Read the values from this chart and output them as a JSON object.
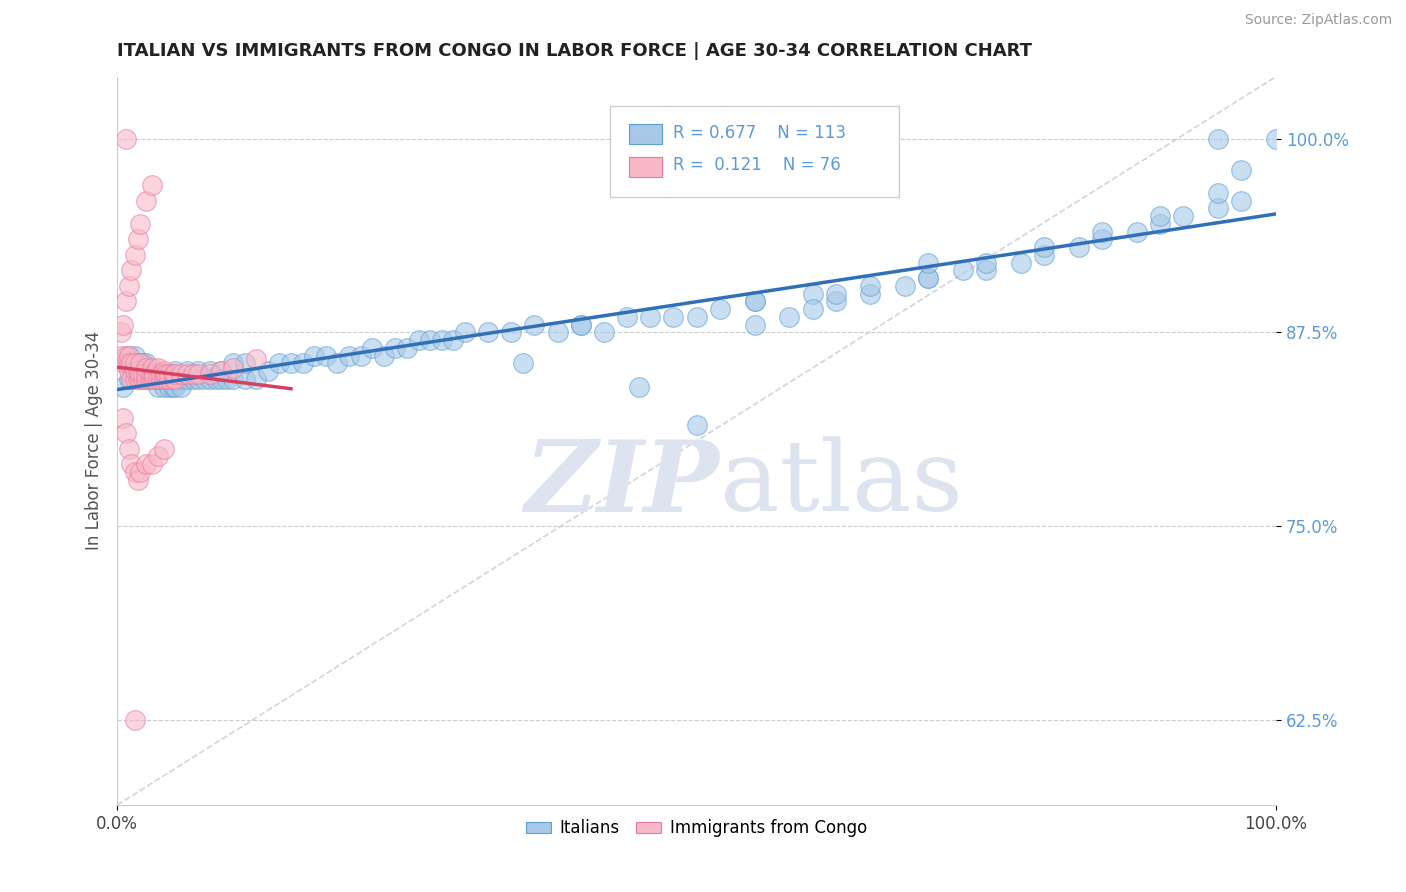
{
  "title": "ITALIAN VS IMMIGRANTS FROM CONGO IN LABOR FORCE | AGE 30-34 CORRELATION CHART",
  "source": "Source: ZipAtlas.com",
  "ylabel": "In Labor Force | Age 30-34",
  "xlim": [
    0.0,
    1.0
  ],
  "ylim": [
    0.57,
    1.04
  ],
  "yticks": [
    0.625,
    0.75,
    0.875,
    1.0
  ],
  "ytick_labels": [
    "62.5%",
    "75.0%",
    "87.5%",
    "100.0%"
  ],
  "xticks": [
    0.0,
    1.0
  ],
  "xtick_labels": [
    "0.0%",
    "100.0%"
  ],
  "legend_r_blue": "0.677",
  "legend_n_blue": "113",
  "legend_r_pink": "0.121",
  "legend_n_pink": "76",
  "blue_fill": "#a8c8e8",
  "blue_edge": "#5a9fd4",
  "pink_fill": "#f8b8c8",
  "pink_edge": "#e87898",
  "blue_line_color": "#3070b8",
  "pink_line_color": "#d84060",
  "ref_line_color": "#c8c8d8",
  "watermark_color": "#dde4f0",
  "blue_scatter_x": [
    0.005,
    0.008,
    0.01,
    0.01,
    0.012,
    0.015,
    0.015,
    0.018,
    0.02,
    0.02,
    0.022,
    0.025,
    0.025,
    0.028,
    0.03,
    0.03,
    0.032,
    0.035,
    0.035,
    0.038,
    0.04,
    0.04,
    0.042,
    0.045,
    0.045,
    0.048,
    0.05,
    0.05,
    0.055,
    0.055,
    0.06,
    0.06,
    0.065,
    0.07,
    0.07,
    0.075,
    0.08,
    0.08,
    0.085,
    0.09,
    0.09,
    0.095,
    0.1,
    0.1,
    0.11,
    0.11,
    0.12,
    0.13,
    0.14,
    0.15,
    0.16,
    0.17,
    0.18,
    0.19,
    0.2,
    0.21,
    0.22,
    0.23,
    0.24,
    0.25,
    0.26,
    0.27,
    0.28,
    0.29,
    0.3,
    0.32,
    0.34,
    0.36,
    0.38,
    0.4,
    0.42,
    0.44,
    0.46,
    0.48,
    0.5,
    0.52,
    0.55,
    0.58,
    0.6,
    0.62,
    0.65,
    0.68,
    0.7,
    0.73,
    0.75,
    0.78,
    0.8,
    0.83,
    0.85,
    0.88,
    0.9,
    0.92,
    0.95,
    0.97,
    0.5,
    0.45,
    0.35,
    0.4,
    0.55,
    0.6,
    0.65,
    0.7,
    0.75,
    0.8,
    0.85,
    0.9,
    0.95,
    0.97,
    1.0,
    0.55,
    0.62,
    0.7,
    0.95
  ],
  "blue_scatter_y": [
    0.84,
    0.855,
    0.86,
    0.845,
    0.855,
    0.85,
    0.86,
    0.855,
    0.855,
    0.845,
    0.855,
    0.845,
    0.855,
    0.845,
    0.845,
    0.85,
    0.845,
    0.845,
    0.84,
    0.845,
    0.845,
    0.84,
    0.845,
    0.84,
    0.845,
    0.84,
    0.85,
    0.84,
    0.845,
    0.84,
    0.845,
    0.85,
    0.845,
    0.845,
    0.85,
    0.845,
    0.85,
    0.845,
    0.845,
    0.85,
    0.845,
    0.845,
    0.845,
    0.855,
    0.845,
    0.855,
    0.845,
    0.85,
    0.855,
    0.855,
    0.855,
    0.86,
    0.86,
    0.855,
    0.86,
    0.86,
    0.865,
    0.86,
    0.865,
    0.865,
    0.87,
    0.87,
    0.87,
    0.87,
    0.875,
    0.875,
    0.875,
    0.88,
    0.875,
    0.88,
    0.875,
    0.885,
    0.885,
    0.885,
    0.885,
    0.89,
    0.895,
    0.885,
    0.9,
    0.895,
    0.9,
    0.905,
    0.91,
    0.915,
    0.915,
    0.92,
    0.925,
    0.93,
    0.935,
    0.94,
    0.945,
    0.95,
    0.955,
    0.96,
    0.815,
    0.84,
    0.855,
    0.88,
    0.895,
    0.89,
    0.905,
    0.91,
    0.92,
    0.93,
    0.94,
    0.95,
    0.965,
    0.98,
    1.0,
    0.88,
    0.9,
    0.92,
    1.0
  ],
  "pink_scatter_x": [
    0.003,
    0.005,
    0.008,
    0.008,
    0.01,
    0.01,
    0.01,
    0.012,
    0.012,
    0.015,
    0.015,
    0.015,
    0.018,
    0.018,
    0.02,
    0.02,
    0.02,
    0.022,
    0.022,
    0.025,
    0.025,
    0.025,
    0.028,
    0.028,
    0.03,
    0.03,
    0.03,
    0.032,
    0.032,
    0.035,
    0.035,
    0.035,
    0.038,
    0.038,
    0.04,
    0.04,
    0.04,
    0.042,
    0.042,
    0.045,
    0.045,
    0.048,
    0.048,
    0.05,
    0.05,
    0.055,
    0.06,
    0.065,
    0.07,
    0.08,
    0.09,
    0.1,
    0.12,
    0.005,
    0.008,
    0.01,
    0.012,
    0.015,
    0.018,
    0.02,
    0.025,
    0.03,
    0.035,
    0.04,
    0.003,
    0.005,
    0.008,
    0.01,
    0.012,
    0.015,
    0.018,
    0.02,
    0.025,
    0.03,
    0.008,
    0.015
  ],
  "pink_scatter_y": [
    0.86,
    0.855,
    0.855,
    0.86,
    0.85,
    0.855,
    0.86,
    0.845,
    0.855,
    0.845,
    0.85,
    0.855,
    0.845,
    0.85,
    0.845,
    0.848,
    0.855,
    0.845,
    0.848,
    0.845,
    0.848,
    0.852,
    0.845,
    0.848,
    0.845,
    0.848,
    0.852,
    0.845,
    0.848,
    0.845,
    0.848,
    0.852,
    0.845,
    0.848,
    0.845,
    0.848,
    0.85,
    0.845,
    0.848,
    0.845,
    0.848,
    0.845,
    0.848,
    0.845,
    0.848,
    0.848,
    0.848,
    0.848,
    0.848,
    0.848,
    0.85,
    0.852,
    0.858,
    0.82,
    0.81,
    0.8,
    0.79,
    0.785,
    0.78,
    0.785,
    0.79,
    0.79,
    0.795,
    0.8,
    0.875,
    0.88,
    0.895,
    0.905,
    0.915,
    0.925,
    0.935,
    0.945,
    0.96,
    0.97,
    1.0,
    0.625
  ]
}
